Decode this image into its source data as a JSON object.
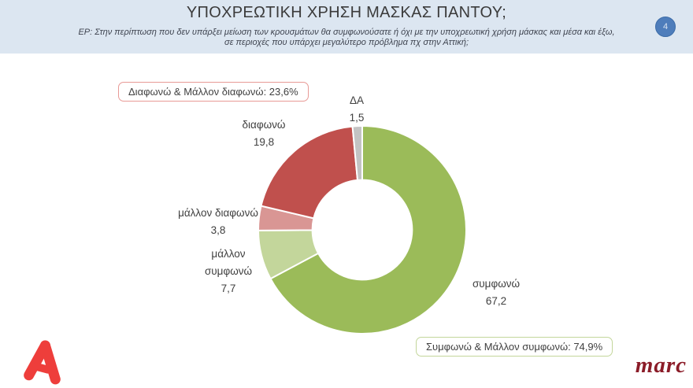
{
  "header": {
    "title": "ΥΠΟΧΡΕΩΤΙΚΗ ΧΡΗΣΗ ΜΑΣΚΑΣ ΠΑΝΤΟΥ;",
    "subtitle_line1": "ΕΡ: Στην περίπτωση που δεν υπάρξει μείωση των κρουσμάτων θα συμφωνούσατε ή όχι με την υποχρεωτική χρήση μάσκας και μέσα και έξω,",
    "subtitle_line2": "σε περιοχές που υπάρχει μεγαλύτερο πρόβλημα πχ στην Αττική;",
    "page_number": "4"
  },
  "chart_data": {
    "type": "pie",
    "subtype": "donut",
    "title": "ΥΠΟΧΡΕΩΤΙΚΗ ΧΡΗΣΗ ΜΑΣΚΑΣ ΠΑΝΤΟΥ;",
    "categories": [
      "συμφωνώ",
      "μάλλον συμφωνώ",
      "μάλλον διαφωνώ",
      "διαφωνώ",
      "ΔΑ"
    ],
    "values": [
      67.2,
      7.7,
      3.8,
      19.8,
      1.5
    ],
    "display_values": [
      "67,2",
      "7,7",
      "3,8",
      "19,8",
      "1,5"
    ],
    "colors": [
      "#9bbb59",
      "#c3d69b",
      "#d99694",
      "#c0504d",
      "#c3c3c3"
    ],
    "start_angle_deg": 0,
    "direction": "clockwise",
    "inner_radius_ratio": 0.48,
    "legend": "none",
    "annotations": [
      {
        "text": "Διαφωνώ & Μάλλον διαφωνώ: 23,6%",
        "border_color": "#e89a96"
      },
      {
        "text": "Συμφωνώ & Μάλλον συμφωνώ: 74,9%",
        "border_color": "#c3d69b"
      }
    ]
  },
  "footer": {
    "alpha_logo": "alpha-tv-logo",
    "alpha_logo_color": "#ee3e3b",
    "marc_logo_text": "marc",
    "marc_logo_color": "#8b1c28"
  },
  "theme": {
    "header_bg": "#dce6f1",
    "body_bg": "#ffffff",
    "text_color": "#404040",
    "badge_bg": "#4e7dbb"
  }
}
